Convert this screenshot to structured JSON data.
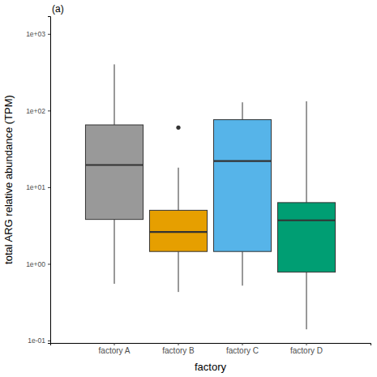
{
  "chart_data": {
    "type": "box",
    "title": "(a)",
    "x_label": "factory",
    "y_label": "total ARG relative abundance (TPM)",
    "categories": [
      "factory A",
      "factory B",
      "factory C",
      "factory D"
    ],
    "colors": [
      "#999999",
      "#e69f00",
      "#56b4e9",
      "#009e73"
    ],
    "boxes": [
      {
        "min": 0.55,
        "q1": 3.8,
        "median": 19.5,
        "q3": 65,
        "max": 400,
        "outliers": []
      },
      {
        "min": 0.43,
        "q1": 1.45,
        "median": 2.6,
        "q3": 5,
        "max": 18,
        "outliers": [
          60
        ]
      },
      {
        "min": 0.52,
        "q1": 1.45,
        "median": 22,
        "q3": 76,
        "max": 128,
        "outliers": []
      },
      {
        "min": 0.14,
        "q1": 0.78,
        "median": 3.7,
        "q3": 6.3,
        "max": 132,
        "outliers": []
      }
    ],
    "log": "y",
    "grid": false,
    "ylim": [
      0.093,
      1700
    ],
    "yticks": [
      {
        "value": 0.1,
        "label": "1e-01"
      },
      {
        "value": 1,
        "label": "1e+00"
      },
      {
        "value": 10,
        "label": "1e+01"
      },
      {
        "value": 100,
        "label": "1e+02"
      },
      {
        "value": 1000,
        "label": "1e+03"
      }
    ]
  }
}
